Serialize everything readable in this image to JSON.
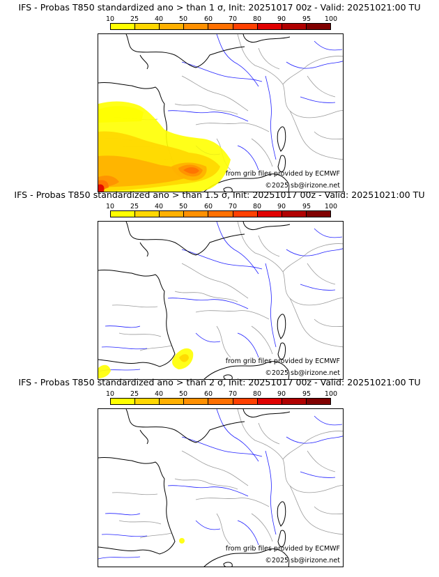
{
  "colorbar": {
    "labels": [
      "10",
      "25",
      "40",
      "50",
      "60",
      "70",
      "80",
      "90",
      "95",
      "100"
    ],
    "colors": [
      "#ffff00",
      "#ffd700",
      "#ffb000",
      "#ff9000",
      "#ff7000",
      "#ff4000",
      "#e00000",
      "#b00000",
      "#800000"
    ]
  },
  "colors": {
    "coast": "#000000",
    "border": "#9a9a9a",
    "river": "#2020ff"
  },
  "panels": [
    {
      "title": "IFS - Probas T850  standardized ano > than 1 σ, Init: 20251017 00z - Valid: 20251021:00 TU",
      "source": "from grib files provided by ECMWF",
      "copyright": "©2025 sb@irizone.net"
    },
    {
      "title": "IFS - Probas T850  standardized ano > than 1.5 σ, Init: 20251017 00z - Valid: 20251021:00 TU",
      "source": "from grib files provided by ECMWF",
      "copyright": "©2025 sb@irizone.net"
    },
    {
      "title": "IFS - Probas T850  standardized ano > than 2 σ, Init: 20251017 00z - Valid: 20251021:00 TU",
      "source": "from grib files provided by ECMWF",
      "copyright": "©2025 sb@irizone.net"
    }
  ]
}
